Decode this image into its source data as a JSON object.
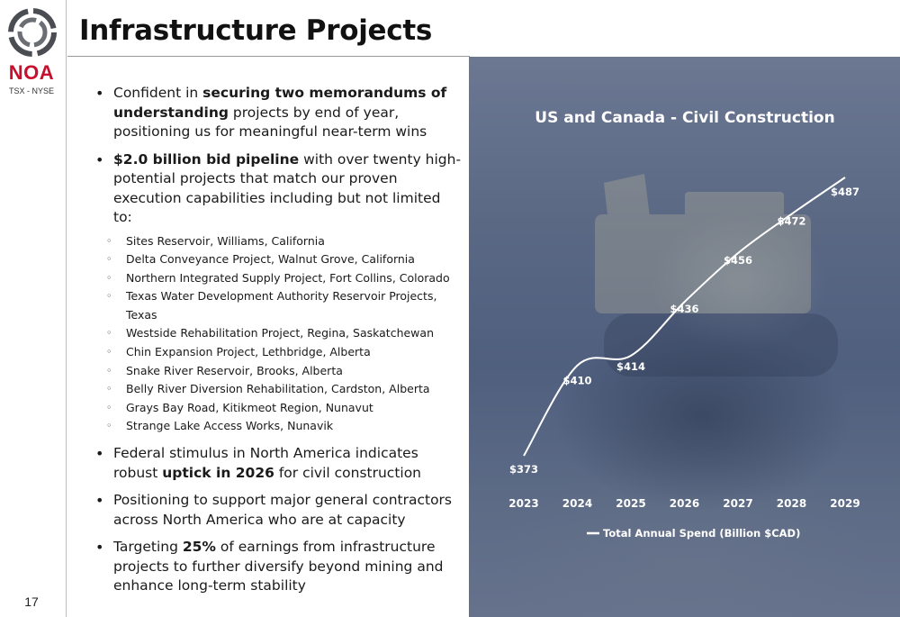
{
  "brand": {
    "name": "NOA",
    "exchange": "TSX - NYSE"
  },
  "page": {
    "title": "Infrastructure Projects",
    "number": "17"
  },
  "bullets": [
    {
      "parts": [
        {
          "text": "Confident in ",
          "bold": false
        },
        {
          "text": "securing two memorandums of understanding",
          "bold": true
        },
        {
          "text": " projects by end of year, positioning us for meaningful near-term wins",
          "bold": false
        }
      ]
    },
    {
      "parts": [
        {
          "text": "$2.0 billion bid pipeline",
          "bold": true
        },
        {
          "text": " with over twenty high-potential projects that match our proven execution capabilities including but not limited to:",
          "bold": false
        }
      ],
      "subitems": [
        "Sites Reservoir, Williams, California",
        "Delta Conveyance Project, Walnut Grove, California",
        "Northern Integrated Supply Project, Fort Collins, Colorado",
        "Texas Water Development Authority Reservoir Projects, Texas",
        "Westside Rehabilitation Project, Regina, Saskatchewan",
        "Chin Expansion Project, Lethbridge, Alberta",
        "Snake River Reservoir, Brooks, Alberta",
        "Belly River Diversion Rehabilitation, Cardston, Alberta",
        "Grays Bay Road, Kitikmeot Region, Nunavut",
        "Strange Lake Access Works, Nunavik"
      ]
    },
    {
      "parts": [
        {
          "text": "Federal stimulus in North America indicates robust ",
          "bold": false
        },
        {
          "text": "uptick in 2026",
          "bold": true
        },
        {
          "text": " for civil construction",
          "bold": false
        }
      ]
    },
    {
      "parts": [
        {
          "text": "Positioning to support major general contractors across North America who are at capacity",
          "bold": false
        }
      ]
    },
    {
      "parts": [
        {
          "text": "Targeting ",
          "bold": false
        },
        {
          "text": "25%",
          "bold": true
        },
        {
          "text": " of earnings from infrastructure projects to further diversify beyond mining and enhance long-term stability",
          "bold": false
        }
      ]
    }
  ],
  "colors": {
    "brand_red": "#c8102e",
    "chart_line": "#ffffff",
    "panel_bg": "#56658a"
  },
  "chart_data": {
    "type": "line",
    "title": "US and Canada - Civil Construction",
    "categories": [
      "2023",
      "2024",
      "2025",
      "2026",
      "2027",
      "2028",
      "2029"
    ],
    "series": [
      {
        "name": "Total Annual Spend (Billion $CAD)",
        "values": [
          373,
          410,
          414,
          436,
          456,
          472,
          487
        ],
        "labels": [
          "$373",
          "$410",
          "$414",
          "$436",
          "$456",
          "$472",
          "$487"
        ]
      }
    ],
    "ylim": [
      373,
      487
    ],
    "legend": "bottom",
    "grid": false
  }
}
